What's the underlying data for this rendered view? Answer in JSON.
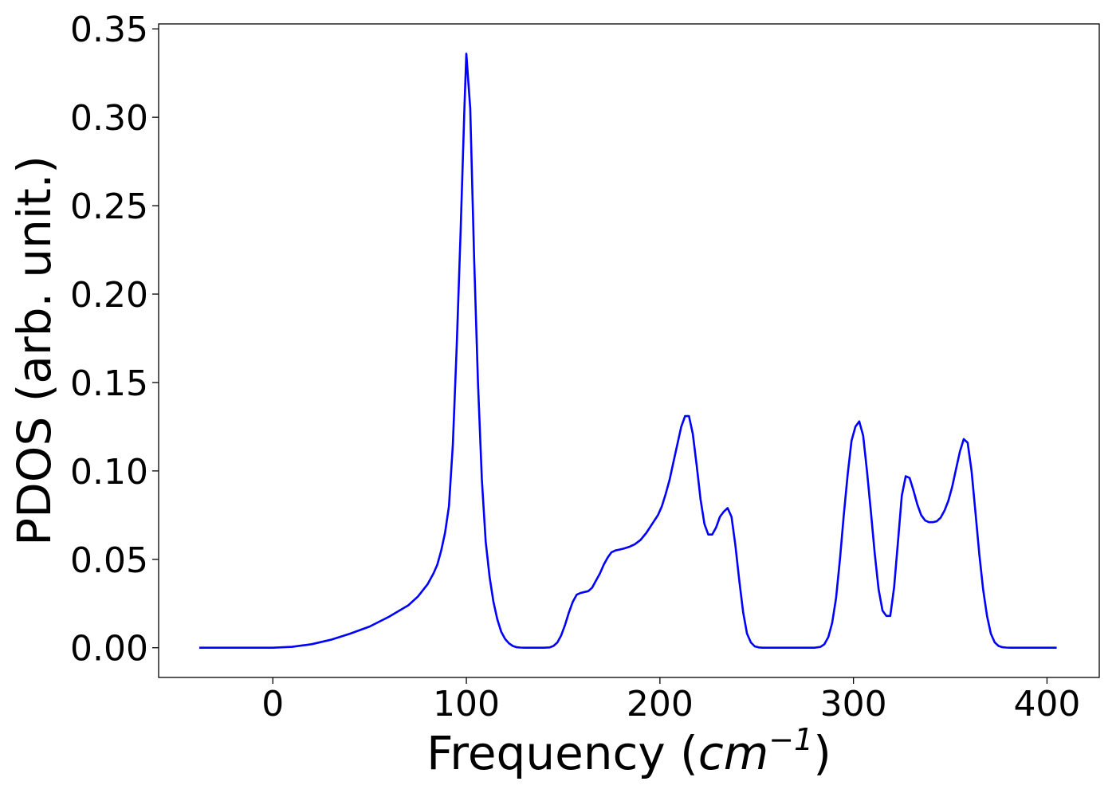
{
  "chart_data": {
    "type": "line",
    "title": "",
    "xlabel_main": "Frequency (",
    "xlabel_var": "cm",
    "xlabel_sup": "−1",
    "xlabel_close": ")",
    "ylabel": "PDOS (arb. unit.)",
    "xlim": [
      -59,
      427
    ],
    "ylim": [
      -0.0168,
      0.3528
    ],
    "xticks": [
      0,
      100,
      200,
      300,
      400
    ],
    "xtick_labels": [
      "0",
      "100",
      "200",
      "300",
      "400"
    ],
    "yticks": [
      0.0,
      0.05,
      0.1,
      0.15,
      0.2,
      0.25,
      0.3,
      0.35
    ],
    "ytick_labels": [
      "0.00",
      "0.05",
      "0.10",
      "0.15",
      "0.20",
      "0.25",
      "0.30",
      "0.35"
    ],
    "grid": false,
    "legend": "none",
    "line_color": "#0000ff",
    "series": [
      {
        "x": [
          -38,
          -20,
          0,
          10,
          20,
          30,
          40,
          50,
          60,
          70,
          75,
          80,
          83,
          85,
          87,
          89,
          91,
          93,
          95,
          97,
          99,
          100,
          102,
          104,
          106,
          108,
          110,
          112,
          114,
          116,
          118,
          120,
          122,
          124,
          126,
          128,
          130,
          135,
          140,
          143,
          145,
          147,
          149,
          151,
          153,
          155,
          157,
          159,
          161,
          163,
          165,
          167,
          169,
          171,
          173,
          175,
          177,
          179,
          181,
          184,
          187,
          190,
          193,
          196,
          199,
          201,
          203,
          205,
          207,
          209,
          211,
          213,
          215,
          217,
          219,
          221,
          223,
          225,
          227,
          229,
          231,
          233,
          235,
          237,
          239,
          241,
          243,
          245,
          247,
          249,
          251,
          253,
          256,
          260,
          270,
          280,
          283,
          285,
          287,
          289,
          291,
          293,
          295,
          297,
          299,
          301,
          303,
          305,
          307,
          309,
          311,
          313,
          315,
          317,
          319,
          321,
          323,
          325,
          327,
          329,
          331,
          333,
          335,
          337,
          339,
          341,
          343,
          345,
          347,
          349,
          351,
          353,
          355,
          357,
          359,
          361,
          363,
          365,
          367,
          369,
          371,
          373,
          375,
          377,
          379,
          381,
          385,
          390,
          400,
          405
        ],
        "y": [
          0.0,
          0.0,
          0.0,
          0.0005,
          0.002,
          0.0045,
          0.008,
          0.012,
          0.0175,
          0.024,
          0.029,
          0.036,
          0.042,
          0.047,
          0.055,
          0.065,
          0.08,
          0.115,
          0.17,
          0.235,
          0.305,
          0.336,
          0.305,
          0.22,
          0.15,
          0.095,
          0.06,
          0.04,
          0.026,
          0.016,
          0.009,
          0.005,
          0.0025,
          0.001,
          0.0003,
          0.0001,
          0.0,
          0.0,
          0.0,
          0.0002,
          0.001,
          0.003,
          0.007,
          0.013,
          0.02,
          0.026,
          0.03,
          0.031,
          0.0315,
          0.032,
          0.034,
          0.038,
          0.042,
          0.047,
          0.051,
          0.054,
          0.055,
          0.0555,
          0.056,
          0.057,
          0.0585,
          0.061,
          0.065,
          0.07,
          0.075,
          0.08,
          0.087,
          0.095,
          0.105,
          0.115,
          0.125,
          0.131,
          0.131,
          0.121,
          0.103,
          0.084,
          0.07,
          0.064,
          0.064,
          0.068,
          0.074,
          0.077,
          0.079,
          0.074,
          0.058,
          0.038,
          0.02,
          0.008,
          0.003,
          0.0008,
          0.0002,
          0.0,
          0.0,
          0.0,
          0.0,
          0.0,
          0.0005,
          0.002,
          0.006,
          0.014,
          0.028,
          0.05,
          0.075,
          0.098,
          0.117,
          0.125,
          0.128,
          0.12,
          0.1,
          0.077,
          0.053,
          0.033,
          0.021,
          0.018,
          0.018,
          0.034,
          0.06,
          0.086,
          0.097,
          0.096,
          0.089,
          0.081,
          0.075,
          0.072,
          0.071,
          0.071,
          0.0715,
          0.0735,
          0.0775,
          0.083,
          0.091,
          0.101,
          0.111,
          0.118,
          0.116,
          0.1,
          0.077,
          0.053,
          0.033,
          0.018,
          0.008,
          0.003,
          0.001,
          0.0003,
          0.0001,
          0.0,
          0.0,
          0.0,
          0.0,
          0.0
        ]
      }
    ]
  }
}
